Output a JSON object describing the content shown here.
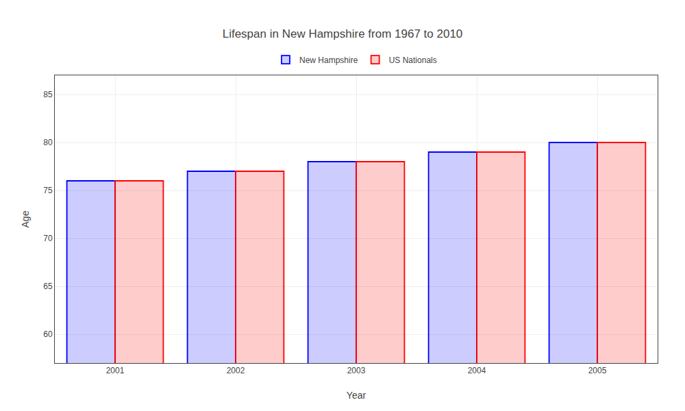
{
  "chart_data": {
    "type": "bar",
    "title": "Lifespan in New Hampshire from 1967 to 2010",
    "x_label": "Year",
    "y_label": "Age",
    "categories": [
      "2001",
      "2002",
      "2003",
      "2004",
      "2005"
    ],
    "series": [
      {
        "name": "New Hampshire",
        "color": "#0000ff",
        "values": [
          76,
          77,
          78,
          79,
          80
        ]
      },
      {
        "name": "US Nationals",
        "color": "#ff0000",
        "values": [
          76,
          77,
          78,
          79,
          80
        ]
      }
    ],
    "ylim": [
      57,
      87
    ],
    "yticks": [
      60,
      65,
      70,
      75,
      80,
      85
    ],
    "grid": true,
    "legend": "top"
  }
}
